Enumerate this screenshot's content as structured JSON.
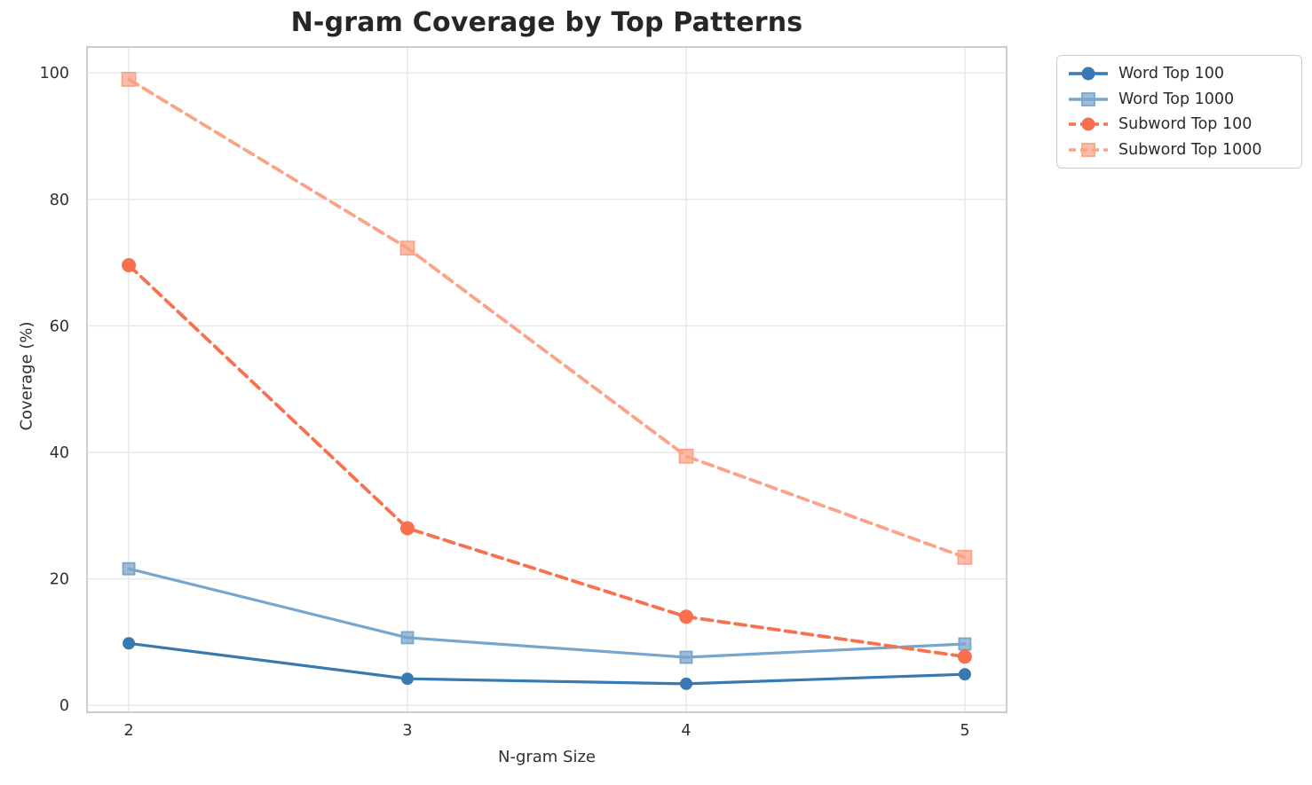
{
  "chart_data": {
    "type": "line",
    "title": "N-gram Coverage by Top Patterns",
    "xlabel": "N-gram Size",
    "ylabel": "Coverage (%)",
    "x": [
      2,
      3,
      4,
      5
    ],
    "xticks": [
      "2",
      "3",
      "4",
      "5"
    ],
    "yticks": [
      0,
      20,
      40,
      60,
      80,
      100
    ],
    "xlim": [
      1.85,
      5.15
    ],
    "ylim": [
      -1.1,
      104.1
    ],
    "grid": true,
    "legend_position": "outside upper right",
    "series": [
      {
        "name": "Word Top 100",
        "color": "#3779b0",
        "marker": "circle",
        "dash": "solid",
        "values": [
          9.8,
          4.2,
          3.4,
          4.9
        ]
      },
      {
        "name": "Word Top 1000",
        "color": "#76a5cd",
        "marker": "square",
        "dash": "solid",
        "values": [
          21.6,
          10.7,
          7.6,
          9.7
        ]
      },
      {
        "name": "Subword Top 100",
        "color": "#f8704d",
        "marker": "circle",
        "dash": "dashed",
        "values": [
          69.6,
          28.0,
          14.0,
          7.7
        ]
      },
      {
        "name": "Subword Top 1000",
        "color": "#fba387",
        "marker": "square",
        "dash": "dashed",
        "values": [
          99.0,
          72.3,
          39.4,
          23.4
        ]
      }
    ],
    "colors": {
      "grid": "#e9e9e9",
      "spine": "#c9c9c9",
      "tick_text": "#303030",
      "background": "#ffffff"
    }
  }
}
